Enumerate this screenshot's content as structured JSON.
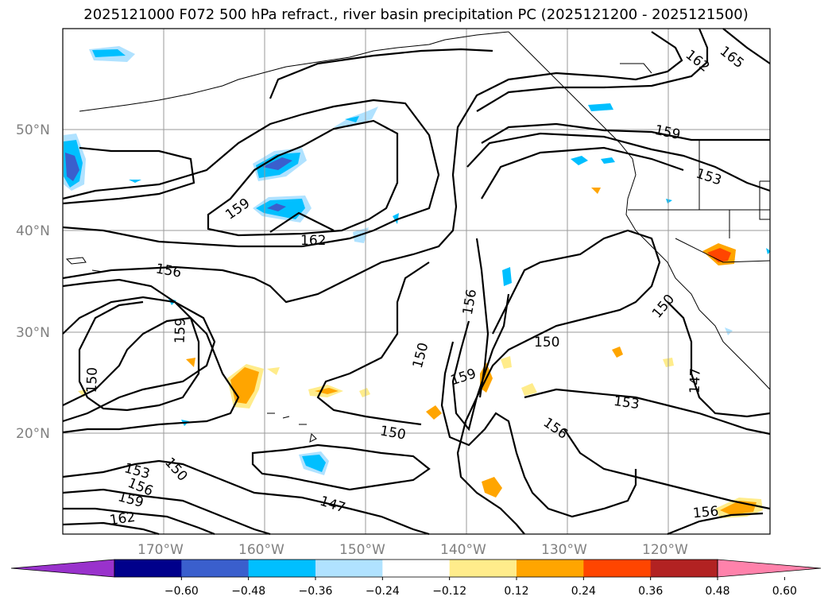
{
  "title": "2025121000 F072 500 hPa refract., river basin precipitation PC (2025121200 - 2025121500)",
  "map": {
    "lat_labels": [
      "50°N",
      "40°N",
      "30°N",
      "20°N"
    ],
    "lon_labels": [
      "170°W",
      "160°W",
      "150°W",
      "140°W",
      "130°W",
      "120°W"
    ],
    "contour_labels": [
      {
        "text": "165"
      },
      {
        "text": "162"
      },
      {
        "text": "159"
      },
      {
        "text": "153"
      },
      {
        "text": "159"
      },
      {
        "text": "162"
      },
      {
        "text": "156"
      },
      {
        "text": "159"
      },
      {
        "text": "150"
      },
      {
        "text": "156"
      },
      {
        "text": "150"
      },
      {
        "text": "159"
      },
      {
        "text": "150"
      },
      {
        "text": "150"
      },
      {
        "text": "153"
      },
      {
        "text": "156"
      },
      {
        "text": "147"
      },
      {
        "text": "150"
      },
      {
        "text": "153"
      },
      {
        "text": "156"
      },
      {
        "text": "159"
      },
      {
        "text": "162"
      },
      {
        "text": "150"
      },
      {
        "text": "147"
      },
      {
        "text": "156"
      }
    ]
  },
  "colorbar": {
    "ticks": [
      "−0.60",
      "−0.48",
      "−0.36",
      "−0.24",
      "−0.12",
      "0.12",
      "0.24",
      "0.36",
      "0.48",
      "0.60"
    ],
    "colors": [
      "#9932CC",
      "#00008B",
      "#3A5FCD",
      "#00BFFF",
      "#B0E2FF",
      "#FFFFFF",
      "#FFEC8B",
      "#FFA500",
      "#FF4500",
      "#B22222",
      "#FF82AB"
    ]
  }
}
